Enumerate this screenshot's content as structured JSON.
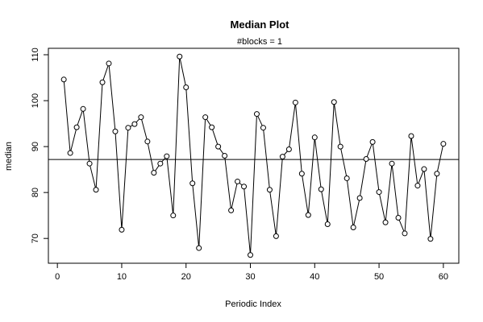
{
  "chart_data": {
    "type": "line",
    "title": "Median Plot",
    "subtitle": "#blocks =  1",
    "xlabel": "Periodic Index",
    "ylabel": "median",
    "xlim": [
      -1.4,
      62.4
    ],
    "ylim": [
      64.6,
      111.4
    ],
    "x_ticks": [
      0,
      10,
      20,
      30,
      40,
      50,
      60
    ],
    "y_ticks": [
      70,
      80,
      90,
      100,
      110
    ],
    "hline": 87.2,
    "grid": false,
    "legend": "none",
    "markers": "open-circle",
    "x": [
      1,
      2,
      3,
      4,
      5,
      6,
      7,
      8,
      9,
      10,
      11,
      12,
      13,
      14,
      15,
      16,
      17,
      18,
      19,
      20,
      21,
      22,
      23,
      24,
      25,
      26,
      27,
      28,
      29,
      30,
      31,
      32,
      33,
      34,
      35,
      36,
      37,
      38,
      39,
      40,
      41,
      42,
      43,
      44,
      45,
      46,
      47,
      48,
      49,
      50,
      51,
      52,
      53,
      54,
      55,
      56,
      57,
      58,
      59,
      60
    ],
    "values": [
      104.6,
      88.6,
      94.2,
      98.2,
      86.3,
      80.6,
      104.0,
      108.1,
      93.3,
      71.9,
      94.1,
      94.9,
      96.4,
      91.1,
      84.3,
      86.3,
      87.9,
      75.0,
      109.6,
      102.9,
      82.0,
      67.9,
      96.4,
      94.2,
      90.0,
      88.0,
      76.1,
      82.4,
      81.3,
      66.4,
      97.1,
      94.1,
      80.6,
      70.5,
      87.8,
      89.4,
      99.6,
      84.1,
      75.1,
      92.0,
      80.7,
      73.1,
      99.7,
      90.0,
      83.1,
      72.4,
      78.8,
      87.3,
      91.0,
      80.1,
      73.5,
      86.3,
      74.5,
      71.1,
      92.3,
      81.5,
      85.1,
      69.9,
      84.1,
      90.6
    ]
  }
}
